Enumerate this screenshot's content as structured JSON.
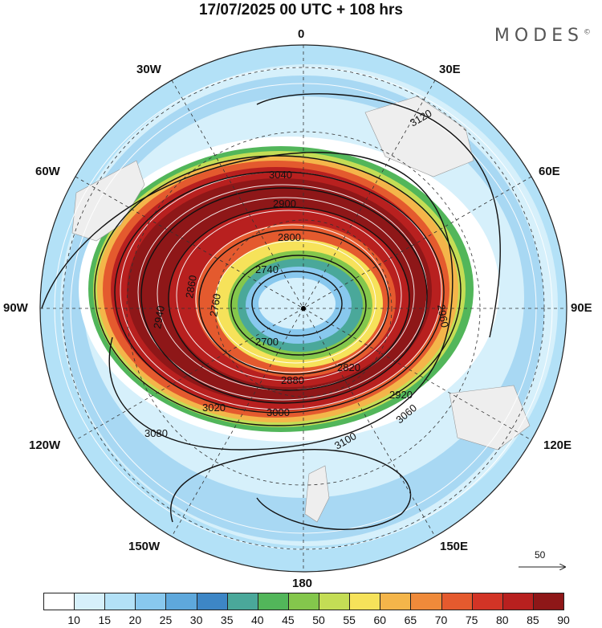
{
  "title": "17/07/2025  00 UTC  + 108 hrs",
  "brand": "MODES",
  "brand_mark": "©",
  "longitude_labels": {
    "north": "0",
    "n30e": "30E",
    "n60e": "60E",
    "east": "90E",
    "s120e": "120E",
    "s150e": "150E",
    "south": "180",
    "s150w": "150W",
    "s120w": "120W",
    "west": "90W",
    "n60w": "60W",
    "n30w": "30W"
  },
  "colorbar": {
    "ticks": [
      "10",
      "15",
      "20",
      "25",
      "30",
      "35",
      "40",
      "45",
      "50",
      "55",
      "60",
      "65",
      "70",
      "75",
      "80",
      "85",
      "90"
    ],
    "colors": [
      "#ffffff",
      "#d6f0fb",
      "#b3e1f7",
      "#88c8ee",
      "#5ea8dc",
      "#3d86c6",
      "#4aa89a",
      "#52b65a",
      "#84c74c",
      "#c4dd55",
      "#f6e25a",
      "#f4b54a",
      "#ef8a3a",
      "#e45a2e",
      "#d23426",
      "#b8201f",
      "#8e1718"
    ]
  },
  "contour_labels": [
    "2740",
    "2700",
    "2760",
    "2800",
    "2820",
    "2860",
    "2880",
    "2900",
    "2920",
    "2940",
    "2960",
    "3000",
    "3020",
    "3040",
    "3060",
    "3080",
    "3100",
    "3120"
  ],
  "vector_reference": {
    "value": "50"
  }
}
